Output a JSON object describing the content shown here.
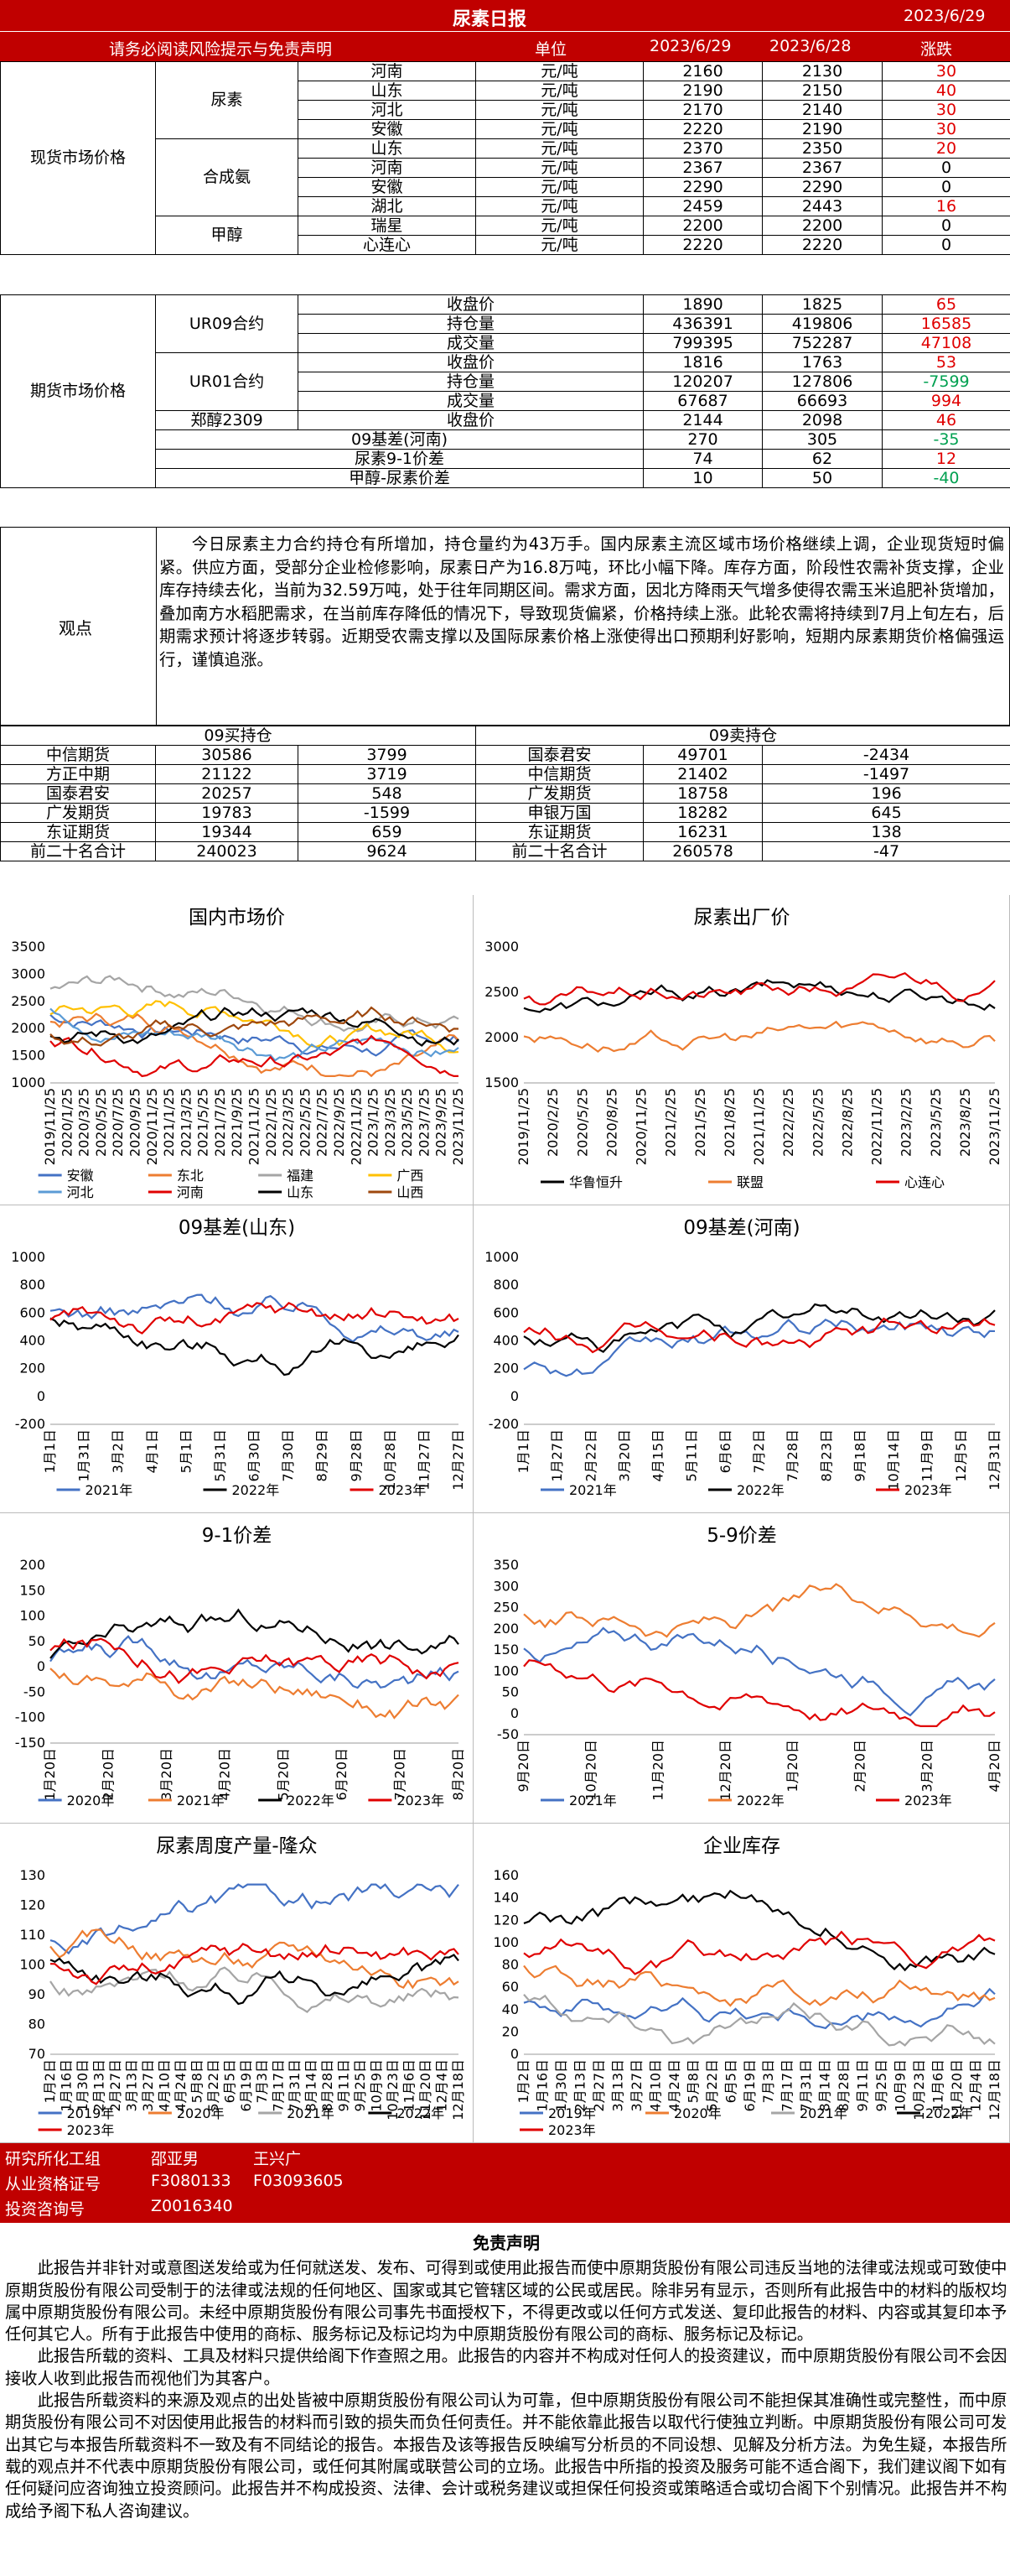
{
  "header": {
    "title": "尿素日报",
    "date": "2023/6/29",
    "disclaimer_link": "请务必阅读风险提示与免责声明",
    "col_unit": "单位",
    "col_d1": "2023/6/29",
    "col_d2": "2023/6/28",
    "col_chg": "涨跌"
  },
  "spot": {
    "section": "现货市场价格",
    "groups": [
      {
        "name": "尿素",
        "rows": [
          [
            "河南",
            "元/吨",
            "2160",
            "2130",
            "30"
          ],
          [
            "山东",
            "元/吨",
            "2190",
            "2150",
            "40"
          ],
          [
            "河北",
            "元/吨",
            "2170",
            "2140",
            "30"
          ],
          [
            "安徽",
            "元/吨",
            "2220",
            "2190",
            "30"
          ]
        ]
      },
      {
        "name": "合成氨",
        "rows": [
          [
            "山东",
            "元/吨",
            "2370",
            "2350",
            "20"
          ],
          [
            "河南",
            "元/吨",
            "2367",
            "2367",
            "0"
          ],
          [
            "安徽",
            "元/吨",
            "2290",
            "2290",
            "0"
          ],
          [
            "湖北",
            "元/吨",
            "2459",
            "2443",
            "16"
          ]
        ]
      },
      {
        "name": "甲醇",
        "rows": [
          [
            "瑞星",
            "元/吨",
            "2200",
            "2200",
            "0"
          ],
          [
            "心连心",
            "元/吨",
            "2220",
            "2220",
            "0"
          ]
        ]
      }
    ]
  },
  "futures": {
    "section": "期货市场价格",
    "ur09": {
      "name": "UR09合约",
      "rows": [
        [
          "收盘价",
          "1890",
          "1825",
          "65"
        ],
        [
          "持仓量",
          "436391",
          "419806",
          "16585"
        ],
        [
          "成交量",
          "799395",
          "752287",
          "47108"
        ]
      ]
    },
    "ur01": {
      "name": "UR01合约",
      "rows": [
        [
          "收盘价",
          "1816",
          "1763",
          "53"
        ],
        [
          "持仓量",
          "120207",
          "127806",
          "-7599"
        ],
        [
          "成交量",
          "67687",
          "66693",
          "994"
        ]
      ]
    },
    "ma": {
      "name": "郑醇2309",
      "row": [
        "收盘价",
        "2144",
        "2098",
        "46"
      ]
    },
    "basis": [
      [
        "09基差(河南)",
        "270",
        "305",
        "-35"
      ],
      [
        "尿素9-1价差",
        "74",
        "62",
        "12"
      ],
      [
        "甲醇-尿素价差",
        "10",
        "50",
        "-40"
      ]
    ]
  },
  "observation": {
    "label": "观点",
    "text": "今日尿素主力合约持仓有所增加，持仓量约为43万手。国内尿素主流区域市场价格继续上调，企业现货短时偏紧。供应方面，受部分企业检修影响，尿素日产为16.8万吨，环比小幅下降。库存方面，阶段性农需补货支撑，企业库存持续去化，当前为32.59万吨，处于往年同期区间。需求方面，因北方降雨天气增多使得农需玉米追肥补货增加，叠加南方水稻肥需求，在当前库存降低的情况下，导致现货偏紧，价格持续上涨。此轮农需将持续到7月上旬左右，后期需求预计将逐步转弱。近期受农需支撑以及国际尿素价格上涨使得出口预期利好影响，短期内尿素期货价格偏强运行，谨慎追涨。"
  },
  "positions": {
    "buy_title": "09买持仓",
    "sell_title": "09卖持仓",
    "rows": [
      [
        "中信期货",
        "30586",
        "3799",
        "国泰君安",
        "49701",
        "-2434"
      ],
      [
        "方正中期",
        "21122",
        "3719",
        "中信期货",
        "21402",
        "-1497"
      ],
      [
        "国泰君安",
        "20257",
        "548",
        "广发期货",
        "18758",
        "196"
      ],
      [
        "广发期货",
        "19783",
        "-1599",
        "申银万国",
        "18282",
        "645"
      ],
      [
        "东证期货",
        "19344",
        "659",
        "东证期货",
        "16231",
        "138"
      ],
      [
        "前二十名合计",
        "240023",
        "9624",
        "前二十名合计",
        "260578",
        "-47"
      ]
    ]
  },
  "charts": [
    {
      "title": "国内市场价",
      "yticks": [
        "3500",
        "3000",
        "2500",
        "2000",
        "1500",
        "1000"
      ],
      "xticks": [
        "2019/11/25",
        "2020/1/25",
        "2020/3/25",
        "2020/5/25",
        "2020/7/25",
        "2020/9/25",
        "2020/11/25",
        "2021/1/25",
        "2021/3/25",
        "2021/5/25",
        "2021/7/25",
        "2021/9/25",
        "2021/11/25",
        "2022/1/25",
        "2022/3/25",
        "2022/5/25",
        "2022/7/25",
        "2022/9/25",
        "2022/11/25",
        "2023/1/25",
        "2023/3/25",
        "2023/5/25",
        "2023/7/25",
        "2023/9/25",
        "2023/11/25"
      ],
      "legend": [
        "安徽",
        "东北",
        "福建",
        "广西",
        "河北",
        "河南",
        "山东",
        "山西"
      ],
      "colors": [
        "#4472c4",
        "#ed7d31",
        "#a5a5a5",
        "#ffc000",
        "#5b9bd5",
        "#e00000",
        "#000000",
        "#9e480e"
      ]
    },
    {
      "title": "尿素出厂价",
      "yticks": [
        "3000",
        "2500",
        "2000",
        "1500"
      ],
      "xticks": [
        "2019/11/25",
        "2020/2/25",
        "2020/5/25",
        "2020/8/25",
        "2020/11/25",
        "2021/2/25",
        "2021/5/25",
        "2021/8/25",
        "2021/11/25",
        "2022/2/25",
        "2022/5/25",
        "2022/8/25",
        "2022/11/25",
        "2023/2/25",
        "2023/5/25",
        "2023/8/25",
        "2023/11/25"
      ],
      "legend": [
        "华鲁恒升",
        "联盟",
        "心连心"
      ],
      "colors": [
        "#000000",
        "#ed7d31",
        "#e00000"
      ]
    },
    {
      "title": "09基差(山东)",
      "yticks": [
        "1000",
        "800",
        "600",
        "400",
        "200",
        "0",
        "-200"
      ],
      "xticks": [
        "1月1日",
        "1月31日",
        "3月2日",
        "4月1日",
        "5月1日",
        "5月31日",
        "6月30日",
        "7月30日",
        "8月29日",
        "9月28日",
        "10月28日",
        "11月27日",
        "12月27日"
      ],
      "legend": [
        "2021年",
        "2022年",
        "2023年"
      ],
      "colors": [
        "#4472c4",
        "#000000",
        "#e00000"
      ]
    },
    {
      "title": "09基差(河南)",
      "yticks": [
        "1000",
        "800",
        "600",
        "400",
        "200",
        "0",
        "-200"
      ],
      "xticks": [
        "1月1日",
        "1月27日",
        "2月22日",
        "3月20日",
        "4月15日",
        "5月11日",
        "6月6日",
        "7月2日",
        "7月28日",
        "8月23日",
        "9月18日",
        "10月14日",
        "11月9日",
        "12月5日",
        "12月31日"
      ],
      "legend": [
        "2021年",
        "2022年",
        "2023年"
      ],
      "colors": [
        "#4472c4",
        "#000000",
        "#e00000"
      ]
    },
    {
      "title": "9-1价差",
      "yticks": [
        "200",
        "150",
        "100",
        "50",
        "0",
        "-50",
        "-100",
        "-150"
      ],
      "xticks": [
        "1月20日",
        "2月20日",
        "3月20日",
        "4月20日",
        "5月20日",
        "6月20日",
        "7月20日",
        "8月20日"
      ],
      "legend": [
        "2020年",
        "2021年",
        "2022年",
        "2023年"
      ],
      "colors": [
        "#4472c4",
        "#ed7d31",
        "#000000",
        "#e00000"
      ]
    },
    {
      "title": "5-9价差",
      "yticks": [
        "350",
        "300",
        "250",
        "200",
        "150",
        "100",
        "50",
        "0",
        "-50"
      ],
      "xticks": [
        "9月20日",
        "10月20日",
        "11月20日",
        "12月20日",
        "1月20日",
        "2月20日",
        "3月20日",
        "4月20日"
      ],
      "legend": [
        "2021年",
        "2022年",
        "2023年"
      ],
      "colors": [
        "#4472c4",
        "#ed7d31",
        "#e00000"
      ]
    },
    {
      "title": "尿素周度产量-隆众",
      "yticks": [
        "130",
        "120",
        "110",
        "100",
        "90",
        "80",
        "70"
      ],
      "xticks": [
        "1月2日",
        "1月16日",
        "1月30日",
        "2月13日",
        "2月27日",
        "3月13日",
        "3月27日",
        "4月10日",
        "4月24日",
        "5月8日",
        "5月22日",
        "6月5日",
        "6月19日",
        "7月3日",
        "7月17日",
        "7月31日",
        "8月14日",
        "8月28日",
        "9月11日",
        "9月25日",
        "10月9日",
        "10月23日",
        "11月6日",
        "11月20日",
        "12月4日",
        "12月18日"
      ],
      "legend": [
        "2019年",
        "2020年",
        "2021年",
        "2022年",
        "2023年"
      ],
      "colors": [
        "#4472c4",
        "#ed7d31",
        "#a5a5a5",
        "#000000",
        "#e00000"
      ]
    },
    {
      "title": "企业库存",
      "yticks": [
        "160",
        "140",
        "120",
        "100",
        "80",
        "60",
        "40",
        "20",
        "0"
      ],
      "xticks": [
        "1月2日",
        "1月16日",
        "1月30日",
        "2月13日",
        "2月27日",
        "3月13日",
        "3月27日",
        "4月10日",
        "4月24日",
        "5月8日",
        "5月22日",
        "6月5日",
        "6月19日",
        "7月3日",
        "7月17日",
        "7月31日",
        "8月14日",
        "8月28日",
        "9月11日",
        "9月25日",
        "10月9日",
        "10月23日",
        "11月6日",
        "11月20日",
        "12月4日",
        "12月18日"
      ],
      "legend": [
        "2019年",
        "2020年",
        "2021年",
        "2022年",
        "2023年"
      ],
      "colors": [
        "#4472c4",
        "#ed7d31",
        "#a5a5a5",
        "#000000",
        "#e00000"
      ]
    }
  ],
  "footer": {
    "row1": [
      "研究所化工组",
      "邵亚男",
      "王兴广"
    ],
    "row2": [
      "从业资格证号",
      "F3080133",
      "F03093605"
    ],
    "row3": [
      "投资咨询号",
      "Z0016340"
    ]
  },
  "disclaimer": {
    "title": "免责声明",
    "paras": [
      "此报告并非针对或意图送发给或为任何就送发、发布、可得到或使用此报告而使中原期货股份有限公司违反当地的法律或法规或可致使中原期货股份有限公司受制于的法律或法规的任何地区、国家或其它管辖区域的公民或居民。除非另有显示，否则所有此报告中的材料的版权均属中原期货股份有限公司。未经中原期货股份有限公司事先书面授权下，不得更改或以任何方式发送、复印此报告的材料、内容或其复印本予任何其它人。所有于此报告中使用的商标、服务标记及标记均为中原期货股份有限公司的商标、服务标记及标记。",
      "此报告所载的资料、工具及材料只提供给阁下作查照之用。此报告的内容并不构成对任何人的投资建议，而中原期货股份有限公司不会因接收人收到此报告而视他们为其客户。",
      "此报告所载资料的来源及观点的出处皆被中原期货股份有限公司认为可靠，但中原期货股份有限公司不能担保其准确性或完整性，而中原期货股份有限公司不对因使用此报告的材料而引致的损失而负任何责任。并不能依靠此报告以取代行使独立判断。中原期货股份有限公司可发出其它与本报告所载资料不一致及有不同结论的报告。本报告及该等报告反映编写分析员的不同设想、见解及分析方法。为免生疑，本报告所载的观点并不代表中原期货股份有限公司，或任何其附属或联营公司的立场。此报告中所指的投资及服务可能不适合阁下，我们建议阁下如有任何疑问应咨询独立投资顾问。此报告并不构成投资、法律、会计或税务建议或担保任何投资或策略适合或切合阁下个别情况。此报告并不构成给予阁下私人咨询建议。"
    ]
  }
}
